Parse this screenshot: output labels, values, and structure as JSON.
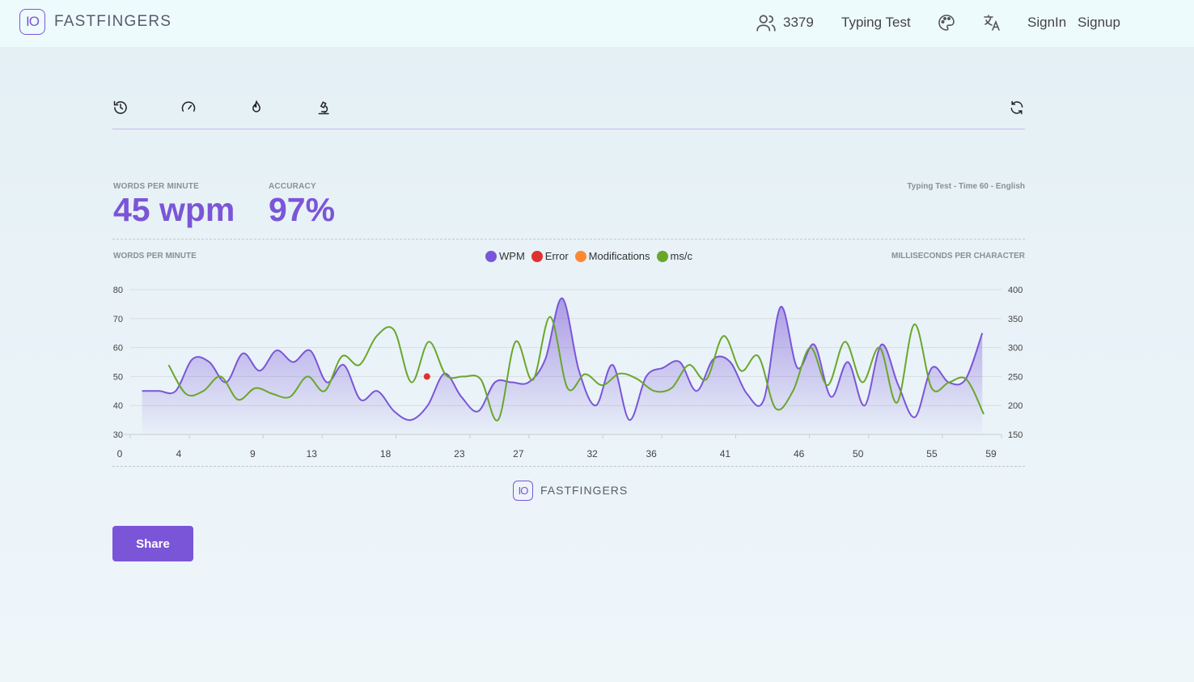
{
  "header": {
    "logo_text": "IO",
    "brand": "FASTFINGERS",
    "online_count": "3379",
    "users_icon": "users-icon",
    "typing_test_link": "Typing Test",
    "theme_icon": "palette-icon",
    "language_icon": "translate-icon",
    "signin": "SignIn",
    "signup": "Signup"
  },
  "modes": {
    "icons": [
      "history-icon",
      "speedometer-icon",
      "flame-icon",
      "microscope-icon"
    ],
    "refresh_icon": "refresh-icon"
  },
  "stats": {
    "wpm_label": "WORDS PER MINUTE",
    "wpm_value": "45 wpm",
    "accuracy_label": "ACCURACY",
    "accuracy_value": "97%",
    "test_info": "Typing Test - Time 60 - English"
  },
  "chart_header": {
    "left_axis_title": "WORDS PER MINUTE",
    "right_axis_title": "MILLISECONDS PER CHARACTER"
  },
  "colors": {
    "accent": "#7b55d8",
    "wpm": "#7b55d8",
    "error": "#e03131",
    "modifications": "#fd8a33",
    "msc": "#6aa62a"
  },
  "chart_data": {
    "type": "line",
    "legend": [
      {
        "name": "WPM",
        "color": "#7b55d8"
      },
      {
        "name": "Error",
        "color": "#e03131"
      },
      {
        "name": "Modifications",
        "color": "#fd8a33"
      },
      {
        "name": "ms/c",
        "color": "#6aa62a"
      }
    ],
    "x_ticks": [
      "0",
      "4",
      "9",
      "13",
      "18",
      "23",
      "27",
      "32",
      "36",
      "41",
      "46",
      "50",
      "55",
      "59"
    ],
    "y_left": {
      "ticks": [
        "30",
        "40",
        "50",
        "60",
        "70",
        "80"
      ],
      "range": [
        30,
        80
      ]
    },
    "y_right": {
      "ticks": [
        "150",
        "200",
        "250",
        "300",
        "350",
        "400"
      ],
      "range": [
        150,
        400
      ]
    },
    "xlim": [
      0,
      59
    ],
    "series": [
      {
        "name": "WPM",
        "axis": "left",
        "values": [
          45,
          45,
          45,
          56,
          55,
          48,
          58,
          52,
          59,
          55,
          59,
          48,
          54,
          42,
          45,
          38,
          35,
          40,
          51,
          43,
          38,
          48,
          48,
          48,
          56,
          77,
          52,
          40,
          54,
          35,
          50,
          53,
          55,
          45,
          56,
          55,
          44,
          42,
          74,
          53,
          61,
          43,
          55,
          40,
          61,
          47,
          36,
          53,
          48,
          49,
          65
        ]
      },
      {
        "name": "ms/c",
        "axis": "right",
        "values": [
          270,
          220,
          225,
          250,
          210,
          230,
          220,
          215,
          250,
          225,
          285,
          270,
          320,
          330,
          240,
          310,
          252,
          250,
          245,
          175,
          310,
          244,
          353,
          230,
          254,
          235,
          255,
          246,
          225,
          230,
          270,
          245,
          320,
          260,
          285,
          195,
          225,
          300,
          235,
          310,
          240,
          300,
          205,
          340,
          230,
          240,
          245,
          185
        ]
      }
    ],
    "error_points": [
      {
        "x": 19,
        "y": 50
      }
    ]
  },
  "footer": {
    "logo_text": "IO",
    "brand": "FASTFINGERS"
  },
  "share_label": "Share"
}
